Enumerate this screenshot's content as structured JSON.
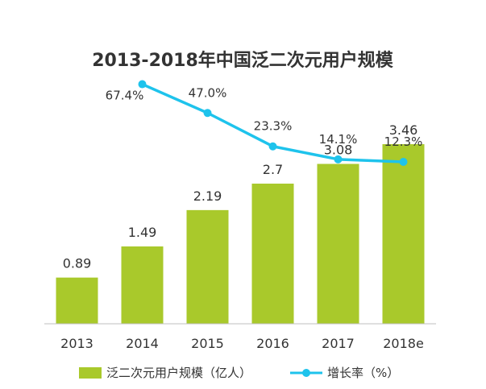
{
  "chart_data": {
    "type": "bar",
    "title": "2013-2018年中国泛二次元用户规模",
    "categories": [
      "2013",
      "2014",
      "2015",
      "2016",
      "2017",
      "2018e"
    ],
    "series": [
      {
        "name": "泛二次元用户规模（亿人）",
        "type": "bar",
        "values": [
          0.89,
          1.49,
          2.19,
          2.7,
          3.08,
          3.46
        ],
        "labels": [
          "0.89",
          "1.49",
          "2.19",
          "2.7",
          "3.08",
          "3.46"
        ],
        "color": "#a9c92b"
      },
      {
        "name": "增长率（%）",
        "type": "line",
        "values": [
          null,
          67.4,
          47.0,
          23.3,
          14.1,
          12.3
        ],
        "labels": [
          "",
          "67.4%",
          "47.0%",
          "23.3%",
          "14.1%",
          "12.3%"
        ],
        "color": "#1ec3ec"
      }
    ],
    "ylim_bar": [
      0,
      3.6
    ],
    "ylim_line": [
      10,
      70
    ],
    "grid": false,
    "legend_position": "bottom"
  }
}
